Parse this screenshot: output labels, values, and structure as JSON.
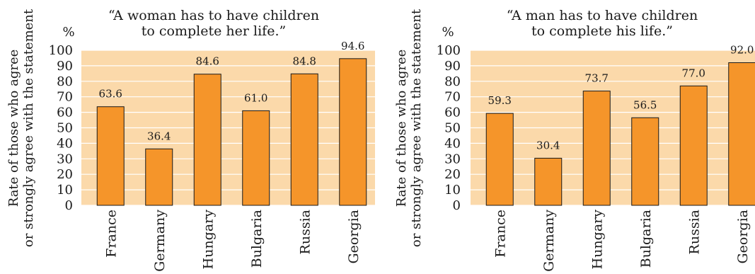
{
  "chart_data": [
    {
      "type": "bar",
      "title_lines": [
        "“A woman has to have children",
        "to complete her life.”"
      ],
      "ylabel_lines": [
        "Rate of those who agree",
        "or strongly agree with the statement"
      ],
      "unit": "%",
      "categories": [
        "France",
        "Germany",
        "Hungary",
        "Bulgaria",
        "Russia",
        "Georgia"
      ],
      "values": [
        63.6,
        36.4,
        84.6,
        61.0,
        84.8,
        94.6
      ],
      "value_labels": [
        "63.6",
        "36.4",
        "84.6",
        "61.0",
        "84.8",
        "94.6"
      ],
      "yticks": [
        0,
        10,
        20,
        30,
        40,
        50,
        60,
        70,
        80,
        90,
        100
      ],
      "ylim": [
        0,
        100
      ],
      "grid": true
    },
    {
      "type": "bar",
      "title_lines": [
        "“A man has to have children",
        "to complete his life.”"
      ],
      "ylabel_lines": [
        "Rate of those who agree",
        "or strongly agree with the statement"
      ],
      "unit": "%",
      "categories": [
        "France",
        "Germany",
        "Hungary",
        "Bulgaria",
        "Russia",
        "Georgia"
      ],
      "values": [
        59.3,
        30.4,
        73.7,
        56.5,
        77.0,
        92.0
      ],
      "value_labels": [
        "59.3",
        "30.4",
        "73.7",
        "56.5",
        "77.0",
        "92.0"
      ],
      "yticks": [
        0,
        10,
        20,
        30,
        40,
        50,
        60,
        70,
        80,
        90,
        100
      ],
      "ylim": [
        0,
        100
      ],
      "grid": true
    }
  ],
  "colors": {
    "plot_bg": "#fbd9aa",
    "bar": "#f5952a",
    "bar_stroke": "#1a1a1a",
    "grid": "#ffffff"
  }
}
